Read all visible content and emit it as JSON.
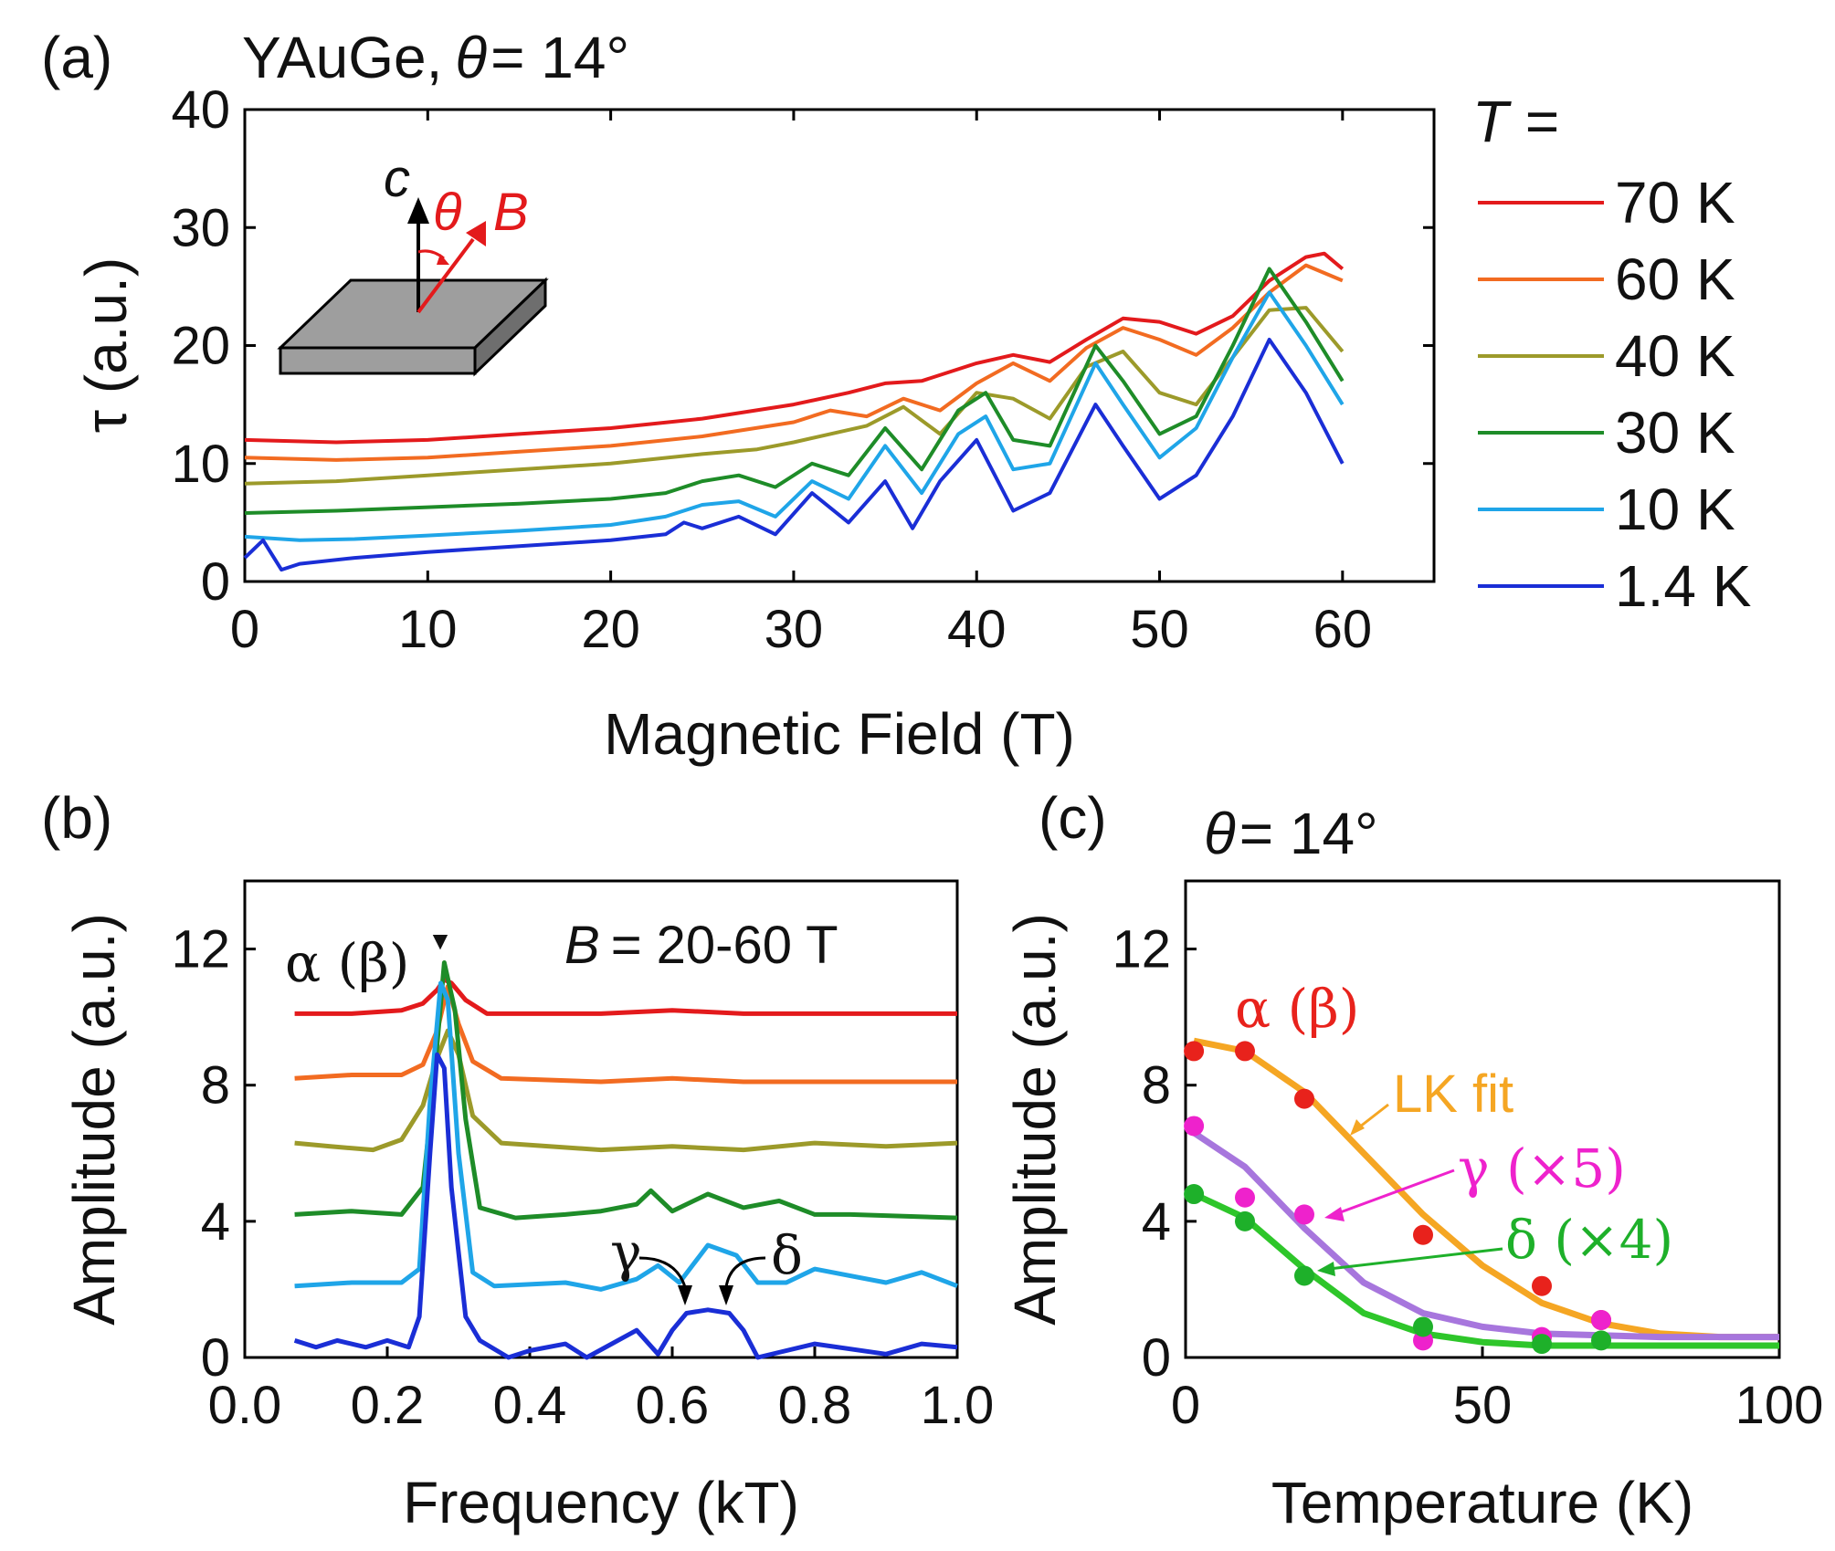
{
  "figure": {
    "panel_a": {
      "label": "(a)",
      "title_prefix": "YAuGe,",
      "title_theta": "θ",
      "title_suffix": "= 14°",
      "legend_title": "T =",
      "inset": {
        "c_label": "c",
        "theta_label": "θ",
        "b_label": "B"
      }
    },
    "panel_b": {
      "label": "(b)",
      "annotation_field_b": "B",
      "annotation_field_range": "= 20-60 T",
      "peak_label": "α (β)",
      "peak_marker": "▼",
      "gamma_label": "γ",
      "delta_label": "δ"
    },
    "panel_c": {
      "label": "(c)",
      "title_theta": "θ",
      "title_suffix": "= 14°",
      "alpha_label": "α (β)",
      "lk_label": "LK fit",
      "gamma_label": "γ (×5)",
      "delta_label": "δ (×4)"
    }
  },
  "chart_data": [
    {
      "id": "a",
      "type": "line",
      "xlabel": "Magnetic Field (T)",
      "ylabel": "τ (a.u.)",
      "xlim": [
        0,
        65
      ],
      "ylim": [
        0,
        40
      ],
      "xticks": [
        "0",
        "10",
        "20",
        "30",
        "40",
        "50",
        "60"
      ],
      "yticks": [
        "0",
        "10",
        "20",
        "30",
        "40"
      ],
      "grid": false,
      "legend_position": "right",
      "series": [
        {
          "name": "70 K",
          "color": "#e31a1c",
          "x": [
            0,
            5,
            10,
            15,
            20,
            25,
            30,
            33,
            35,
            37,
            40,
            42,
            44,
            46,
            48,
            50,
            52,
            54,
            56,
            58,
            59,
            60
          ],
          "y": [
            12,
            11.8,
            12,
            12.5,
            13,
            13.8,
            15,
            16,
            16.8,
            17,
            18.5,
            19.2,
            18.6,
            20.5,
            22.3,
            22,
            21,
            22.5,
            25.5,
            27.5,
            27.8,
            26.5
          ]
        },
        {
          "name": "60 K",
          "color": "#f26b21",
          "x": [
            0,
            5,
            10,
            15,
            20,
            25,
            30,
            32,
            34,
            36,
            38,
            40,
            42,
            44,
            46,
            48,
            50,
            52,
            54,
            56,
            58,
            60
          ],
          "y": [
            10.5,
            10.3,
            10.5,
            11,
            11.5,
            12.3,
            13.5,
            14.5,
            14,
            15.5,
            14.5,
            16.8,
            18.5,
            17,
            19.8,
            21.5,
            20.5,
            19.2,
            21.5,
            24.5,
            26.8,
            25.5
          ]
        },
        {
          "name": "40 K",
          "color": "#9c9a2a",
          "x": [
            0,
            5,
            10,
            15,
            20,
            25,
            28,
            30,
            32,
            34,
            36,
            38,
            40,
            42,
            44,
            46,
            48,
            50,
            52,
            54,
            56,
            58,
            60
          ],
          "y": [
            8.3,
            8.5,
            9,
            9.5,
            10,
            10.8,
            11.2,
            11.8,
            12.5,
            13.2,
            14.8,
            12.5,
            16,
            15.5,
            13.8,
            18.2,
            19.5,
            16,
            15,
            19,
            23,
            23.2,
            19.5
          ]
        },
        {
          "name": "30 K",
          "color": "#1e8c28",
          "x": [
            0,
            5,
            10,
            15,
            20,
            23,
            25,
            27,
            29,
            31,
            33,
            35,
            37,
            39,
            40.5,
            42,
            44,
            46.5,
            48,
            50,
            52,
            54,
            56,
            58,
            60
          ],
          "y": [
            5.8,
            6,
            6.3,
            6.6,
            7,
            7.5,
            8.5,
            9,
            8,
            10,
            9,
            13,
            9.5,
            14.5,
            16,
            12,
            11.5,
            20,
            17,
            12.5,
            14,
            20,
            26.5,
            22,
            17
          ]
        },
        {
          "name": "10 K",
          "color": "#1fa5e8",
          "x": [
            0,
            3,
            6,
            10,
            15,
            20,
            23,
            25,
            27,
            29,
            31,
            33,
            35,
            37,
            39,
            40.5,
            42,
            44,
            46.5,
            48,
            50,
            52,
            54,
            56,
            58,
            60
          ],
          "y": [
            3.8,
            3.5,
            3.6,
            3.9,
            4.3,
            4.8,
            5.5,
            6.5,
            6.8,
            5.5,
            8.5,
            7,
            11.5,
            7.5,
            12.5,
            14,
            9.5,
            10,
            18.5,
            15,
            10.5,
            13,
            19,
            24.5,
            20,
            15
          ]
        },
        {
          "name": "1.4 K",
          "color": "#1a2ed6",
          "x": [
            0,
            1,
            2,
            3,
            6,
            10,
            15,
            20,
            23,
            24,
            25,
            27,
            29,
            31,
            33,
            35,
            36.5,
            38,
            40,
            42,
            44,
            46.5,
            48,
            50,
            52,
            54,
            56,
            58,
            60
          ],
          "y": [
            2,
            3.5,
            1,
            1.5,
            2,
            2.5,
            3,
            3.5,
            4,
            5,
            4.5,
            5.5,
            4,
            7.5,
            5,
            8.5,
            4.5,
            8.5,
            12,
            6,
            7.5,
            15,
            11.5,
            7,
            9,
            14,
            20.5,
            16,
            10
          ]
        }
      ]
    },
    {
      "id": "b",
      "type": "line",
      "xlabel": "Frequency (kT)",
      "ylabel": "Amplitude (a.u.)",
      "xlim": [
        0,
        1.0
      ],
      "ylim": [
        0,
        14
      ],
      "xticks": [
        "0.0",
        "0.2",
        "0.4",
        "0.6",
        "0.8",
        "1.0"
      ],
      "yticks": [
        "0",
        "4",
        "8",
        "12"
      ],
      "grid": false,
      "series": [
        {
          "color": "#e31a1c",
          "x": [
            0.07,
            0.15,
            0.22,
            0.25,
            0.27,
            0.28,
            0.29,
            0.31,
            0.34,
            0.5,
            0.6,
            0.7,
            0.8,
            1.0
          ],
          "y": [
            10.1,
            10.1,
            10.2,
            10.4,
            10.8,
            11.1,
            11.0,
            10.5,
            10.1,
            10.1,
            10.2,
            10.1,
            10.1,
            10.1
          ]
        },
        {
          "color": "#f26b21",
          "x": [
            0.07,
            0.15,
            0.22,
            0.25,
            0.27,
            0.285,
            0.3,
            0.32,
            0.36,
            0.5,
            0.6,
            0.7,
            0.8,
            1.0
          ],
          "y": [
            8.2,
            8.3,
            8.3,
            8.6,
            9.6,
            10.9,
            9.8,
            8.7,
            8.2,
            8.1,
            8.2,
            8.1,
            8.1,
            8.1
          ]
        },
        {
          "color": "#9c9a2a",
          "x": [
            0.07,
            0.12,
            0.18,
            0.22,
            0.25,
            0.27,
            0.285,
            0.3,
            0.32,
            0.36,
            0.5,
            0.6,
            0.7,
            0.8,
            0.9,
            1.0
          ],
          "y": [
            6.3,
            6.2,
            6.1,
            6.4,
            7.4,
            8.8,
            9.6,
            8.9,
            7.1,
            6.3,
            6.1,
            6.2,
            6.1,
            6.3,
            6.2,
            6.3
          ]
        },
        {
          "color": "#1e8c28",
          "x": [
            0.07,
            0.15,
            0.22,
            0.25,
            0.265,
            0.28,
            0.295,
            0.31,
            0.33,
            0.38,
            0.45,
            0.5,
            0.55,
            0.57,
            0.6,
            0.65,
            0.7,
            0.75,
            0.8,
            0.85,
            1.0
          ],
          "y": [
            4.2,
            4.3,
            4.2,
            5.0,
            8.0,
            11.6,
            10.2,
            7.0,
            4.4,
            4.1,
            4.2,
            4.3,
            4.5,
            4.9,
            4.3,
            4.8,
            4.4,
            4.6,
            4.2,
            4.2,
            4.1
          ]
        },
        {
          "color": "#1fa5e8",
          "x": [
            0.07,
            0.15,
            0.22,
            0.245,
            0.26,
            0.275,
            0.285,
            0.3,
            0.32,
            0.35,
            0.45,
            0.5,
            0.55,
            0.58,
            0.61,
            0.65,
            0.69,
            0.72,
            0.76,
            0.8,
            0.9,
            0.95,
            1.0
          ],
          "y": [
            2.1,
            2.2,
            2.2,
            2.6,
            7.5,
            11.0,
            10.5,
            6.0,
            2.5,
            2.1,
            2.2,
            2.0,
            2.3,
            2.7,
            2.2,
            3.3,
            3.0,
            2.2,
            2.2,
            2.6,
            2.2,
            2.5,
            2.1
          ]
        },
        {
          "color": "#1a2ed6",
          "x": [
            0.07,
            0.1,
            0.13,
            0.17,
            0.2,
            0.23,
            0.245,
            0.26,
            0.27,
            0.28,
            0.29,
            0.31,
            0.33,
            0.37,
            0.4,
            0.45,
            0.48,
            0.55,
            0.58,
            0.6,
            0.62,
            0.65,
            0.68,
            0.7,
            0.72,
            0.8,
            0.9,
            0.95,
            1.0
          ],
          "y": [
            0.5,
            0.3,
            0.5,
            0.3,
            0.5,
            0.3,
            1.2,
            6.0,
            8.9,
            8.5,
            5.0,
            1.2,
            0.5,
            0.0,
            0.2,
            0.4,
            0.0,
            0.8,
            0.1,
            0.8,
            1.3,
            1.4,
            1.3,
            0.8,
            0.0,
            0.4,
            0.1,
            0.4,
            0.3
          ]
        }
      ]
    },
    {
      "id": "c",
      "type": "scatter",
      "xlabel": "Temperature (K)",
      "ylabel": "Amplitude (a.u.)",
      "xlim": [
        0,
        100
      ],
      "ylim": [
        0,
        14
      ],
      "xticks": [
        "0",
        "50",
        "100"
      ],
      "yticks": [
        "0",
        "4",
        "8",
        "12"
      ],
      "grid": false,
      "series": [
        {
          "name": "α (β)",
          "color": "#e8221c",
          "points": [
            [
              1.4,
              9.0
            ],
            [
              10,
              9.0
            ],
            [
              20,
              7.6
            ],
            [
              40,
              3.6
            ],
            [
              60,
              2.1
            ],
            [
              70,
              1.1
            ]
          ]
        },
        {
          "name": "γ (×5)",
          "color": "#ee22cc",
          "points": [
            [
              1.4,
              6.8
            ],
            [
              10,
              4.7
            ],
            [
              20,
              4.2
            ],
            [
              40,
              0.5
            ],
            [
              60,
              0.6
            ],
            [
              70,
              1.1
            ]
          ]
        },
        {
          "name": "δ (×4)",
          "color": "#1eb02a",
          "points": [
            [
              1.4,
              4.8
            ],
            [
              10,
              4.0
            ],
            [
              20,
              2.4
            ],
            [
              40,
              0.9
            ],
            [
              60,
              0.4
            ],
            [
              70,
              0.5
            ]
          ]
        }
      ],
      "fits": [
        {
          "color": "#f5a623",
          "x": [
            1.4,
            10,
            20,
            30,
            40,
            50,
            60,
            70,
            80,
            90,
            100
          ],
          "y": [
            9.3,
            9.0,
            7.8,
            6.0,
            4.2,
            2.7,
            1.6,
            1.0,
            0.7,
            0.6,
            0.6
          ]
        },
        {
          "color": "#a776dd",
          "x": [
            1.4,
            10,
            20,
            30,
            40,
            50,
            60,
            70,
            80,
            90,
            100
          ],
          "y": [
            6.6,
            5.6,
            3.8,
            2.2,
            1.3,
            0.9,
            0.7,
            0.65,
            0.6,
            0.6,
            0.6
          ]
        },
        {
          "color": "#2ec62a",
          "x": [
            1.4,
            10,
            20,
            30,
            40,
            50,
            60,
            70,
            80,
            90,
            100
          ],
          "y": [
            4.8,
            4.1,
            2.6,
            1.3,
            0.7,
            0.45,
            0.35,
            0.35,
            0.35,
            0.35,
            0.35
          ]
        }
      ]
    }
  ]
}
